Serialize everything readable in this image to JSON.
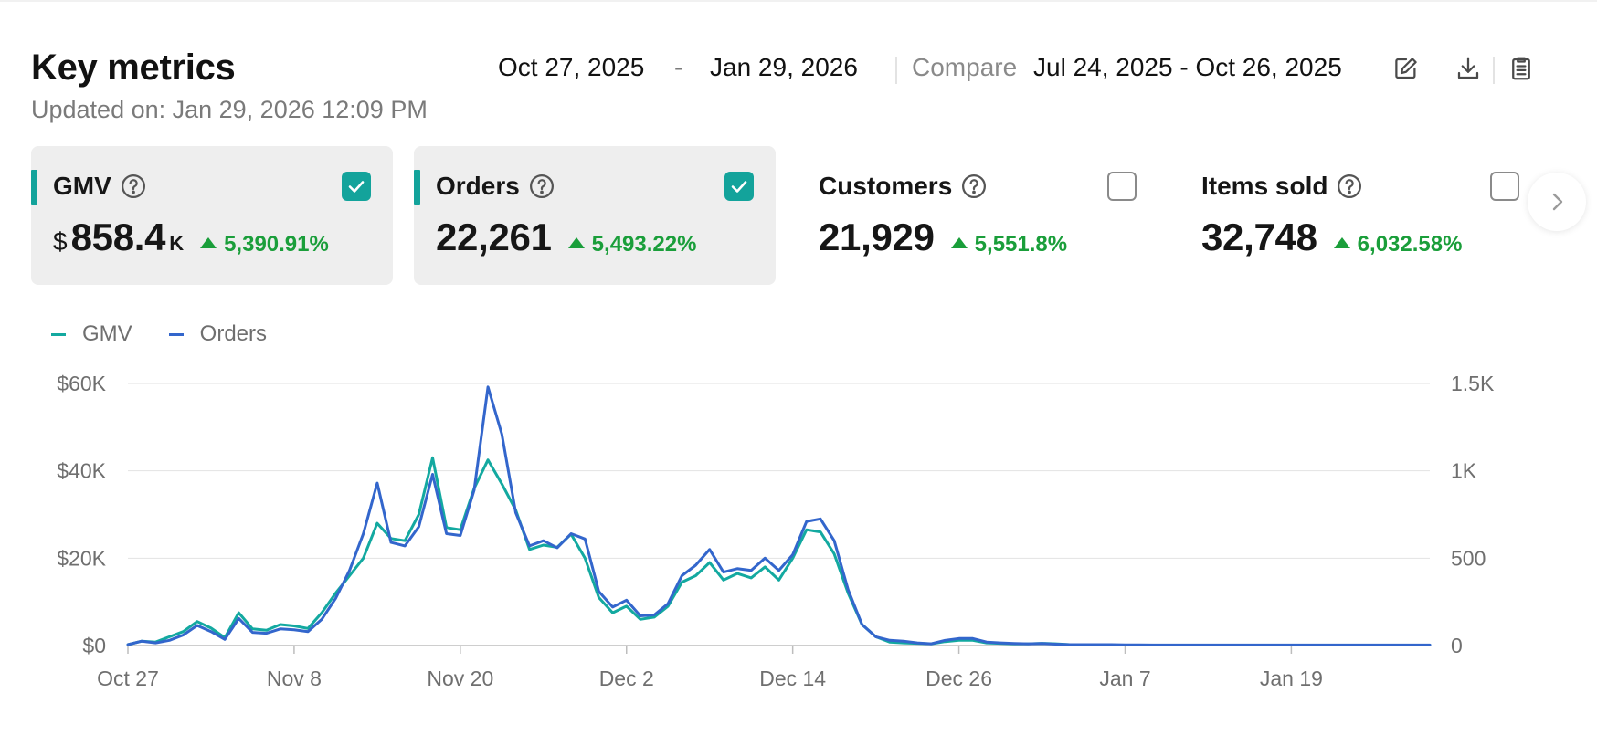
{
  "header": {
    "title": "Key metrics",
    "updated": "Updated on: Jan 29, 2026 12:09 PM"
  },
  "date_range": {
    "start": "Oct 27, 2025",
    "separator": "-",
    "end": "Jan 29, 2026",
    "compare_label": "Compare",
    "compare_range": "Jul 24, 2025 - Oct 26, 2025"
  },
  "toolbar": {
    "icons": [
      "edit-icon",
      "download-icon",
      "clipboard-icon"
    ]
  },
  "cards": [
    {
      "label": "GMV",
      "currency": "$",
      "value": "858.4",
      "suffix": "K",
      "change": "5,390.91%",
      "selected": true,
      "accent": "#13a39b"
    },
    {
      "label": "Orders",
      "currency": "",
      "value": "22,261",
      "suffix": "",
      "change": "5,493.22%",
      "selected": true,
      "accent": "#13a39b"
    },
    {
      "label": "Customers",
      "currency": "",
      "value": "21,929",
      "suffix": "",
      "change": "5,551.8%",
      "selected": false
    },
    {
      "label": "Items sold",
      "currency": "",
      "value": "32,748",
      "suffix": "",
      "change": "6,032.58%",
      "selected": false
    }
  ],
  "colors": {
    "accent": "#13a39b",
    "gmv_line": "#13a9a0",
    "orders_line": "#3366cc",
    "positive": "#1a9e3a"
  },
  "legend": [
    {
      "name": "GMV",
      "color": "#13a9a0"
    },
    {
      "name": "Orders",
      "color": "#3366cc"
    }
  ],
  "chart_data": {
    "type": "line",
    "x_tick_labels": [
      "Oct 27",
      "Nov 8",
      "Nov 20",
      "Dec 2",
      "Dec 14",
      "Dec 26",
      "Jan 7",
      "Jan 19"
    ],
    "y_left_ticks": [
      "$0",
      "$20K",
      "$40K",
      "$60K"
    ],
    "y_left_range": [
      0,
      60000
    ],
    "y_right_ticks": [
      "0",
      "500",
      "1K",
      "1.5K"
    ],
    "y_right_range": [
      0,
      1500
    ],
    "grid": true,
    "legend_position": "top-left",
    "series": [
      {
        "name": "GMV",
        "axis": "left",
        "values": [
          200,
          1000,
          800,
          2000,
          3200,
          5500,
          4000,
          1800,
          7500,
          3800,
          3500,
          4800,
          4500,
          3900,
          7500,
          12000,
          16000,
          20000,
          28000,
          24500,
          24000,
          30000,
          43000,
          27000,
          26500,
          36000,
          42500,
          37000,
          31000,
          22000,
          23000,
          22500,
          25500,
          20000,
          11000,
          7500,
          9000,
          6000,
          6500,
          9000,
          14500,
          16000,
          19000,
          15000,
          16500,
          15500,
          18000,
          15000,
          20000,
          26500,
          26000,
          21000,
          12000,
          4800,
          2000,
          800,
          600,
          500,
          400,
          900,
          1200,
          1200,
          600,
          500,
          400,
          400,
          500,
          400,
          200,
          200,
          100,
          100,
          100,
          100,
          100,
          100,
          100,
          100,
          100,
          100,
          100,
          100,
          100,
          100,
          100,
          100,
          100,
          100,
          100,
          100,
          100,
          100,
          100,
          100,
          100
        ]
      },
      {
        "name": "Orders",
        "axis": "right",
        "values": [
          5,
          25,
          15,
          30,
          60,
          115,
          80,
          35,
          155,
          75,
          70,
          95,
          90,
          80,
          150,
          270,
          430,
          640,
          930,
          590,
          570,
          680,
          980,
          640,
          630,
          890,
          1480,
          1210,
          760,
          570,
          600,
          560,
          640,
          610,
          310,
          220,
          260,
          170,
          175,
          240,
          400,
          460,
          550,
          420,
          440,
          430,
          500,
          430,
          520,
          710,
          725,
          600,
          320,
          120,
          50,
          30,
          25,
          15,
          10,
          30,
          40,
          40,
          20,
          15,
          12,
          10,
          12,
          8,
          5,
          5,
          5,
          5,
          4,
          4,
          3,
          3,
          3,
          3,
          3,
          3,
          3,
          3,
          3,
          3,
          3,
          3,
          3,
          3,
          3,
          3,
          3,
          3,
          3,
          3,
          3
        ]
      }
    ]
  }
}
